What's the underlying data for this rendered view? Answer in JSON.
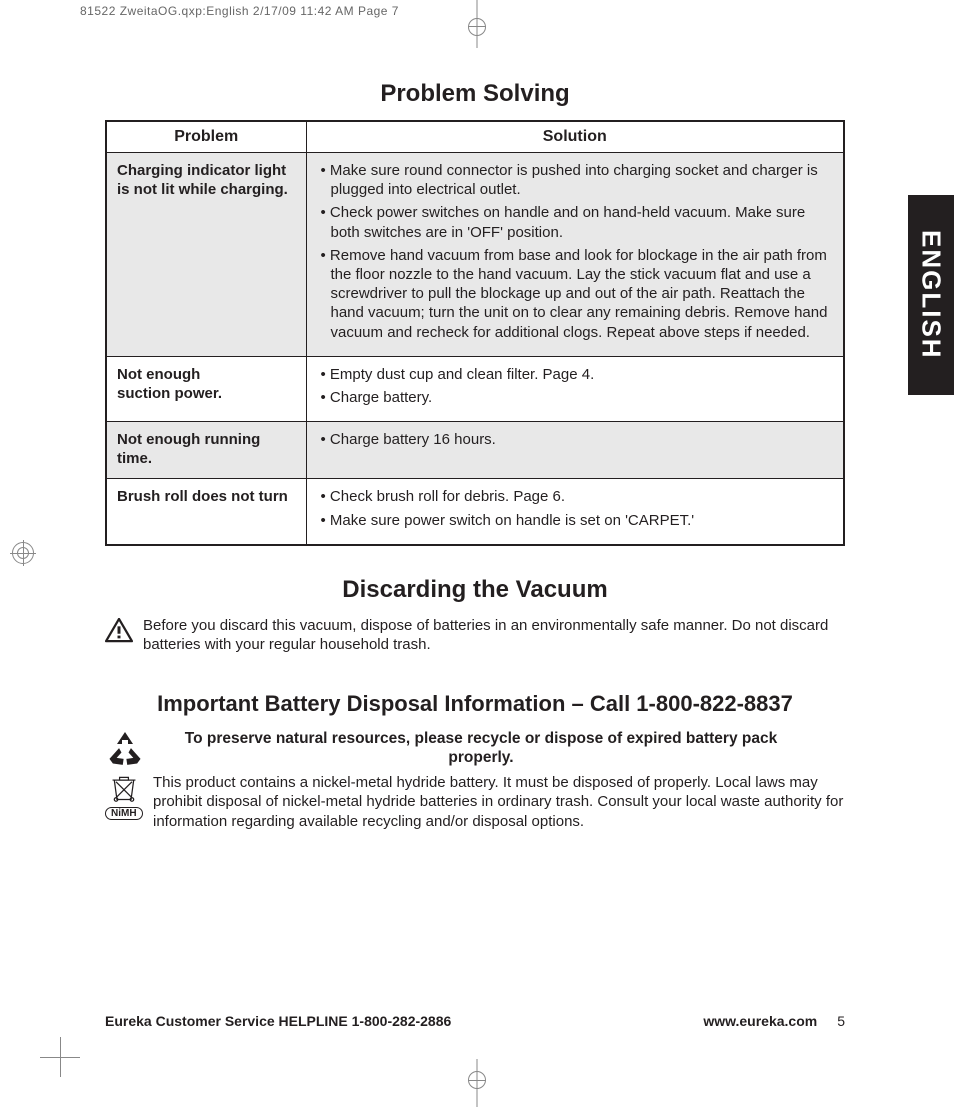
{
  "slug_line": "81522 ZweitaOG.qxp:English  2/17/09  11:42 AM  Page 7",
  "side_tab": "ENGLISH",
  "ps": {
    "title": "Problem Solving",
    "col_problem": "Problem",
    "col_solution": "Solution",
    "rows": [
      {
        "problem": "Charging indicator light is not lit while charging.",
        "solutions": [
          "Make sure round connector is pushed into charging socket and charger is plugged into electrical outlet.",
          "Check power switches on handle and on hand-held vacuum. Make sure both switches are in 'OFF' position.",
          "Remove hand vacuum from base and look for blockage in the air path from the floor nozzle to the hand vacuum. Lay the stick vacuum flat and use a screwdriver to pull the blockage up and out of the air path. Reattach the hand vacuum; turn the unit on to clear any remaining debris. Remove hand vacuum and recheck for additional clogs. Repeat above steps if needed."
        ],
        "shade": true
      },
      {
        "problem": "Not enough\nsuction power.",
        "solutions": [
          "Empty dust cup and clean filter. Page 4.",
          "Charge battery."
        ],
        "shade": false
      },
      {
        "problem": "Not enough running time.",
        "solutions": [
          "Charge battery 16 hours."
        ],
        "shade": true
      },
      {
        "problem": "Brush roll does not turn",
        "solutions": [
          "Check brush roll for debris. Page 6.",
          "Make sure power switch on handle is set on 'CARPET.'"
        ],
        "shade": false
      }
    ]
  },
  "discard": {
    "title": "Discarding the Vacuum",
    "text": "Before you discard this vacuum, dispose of batteries in an environmentally safe manner. Do not discard batteries with your regular household trash."
  },
  "battery": {
    "title": "Important Battery Disposal Information – Call 1-800-822-8837",
    "preserve": "To preserve natural resources, please recycle or dispose of expired battery pack properly.",
    "body": "This product contains a nickel-metal hydride battery. It must be disposed of properly. Local laws may prohibit disposal of nickel-metal hydride batteries in ordinary trash. Consult your local waste authority for information regarding available recycling and/or disposal options.",
    "nimh_label": "NiMH"
  },
  "footer": {
    "helpline": "Eureka Customer Service HELPLINE 1-800-282-2886",
    "url": "www.eureka.com",
    "page": "5"
  },
  "colors": {
    "text": "#231f20",
    "shade": "#e8e8e8",
    "crop": "#888888",
    "tab_bg": "#231f20",
    "tab_fg": "#ffffff"
  }
}
